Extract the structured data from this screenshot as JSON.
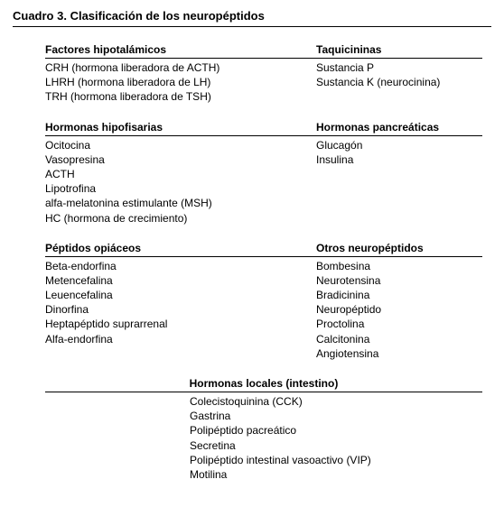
{
  "title": "Cuadro 3. Clasificación de los neuropéptidos",
  "sections": [
    {
      "left": {
        "header": "Factores hipotalámicos",
        "items": [
          "CRH (hormona liberadora de ACTH)",
          "LHRH (hormona liberadora de LH)",
          "TRH (hormona liberadora de TSH)"
        ]
      },
      "right": {
        "header": "Taquicininas",
        "items": [
          "Sustancia P",
          "Sustancia K (neurocinina)"
        ]
      }
    },
    {
      "left": {
        "header": "Hormonas hipofisarias",
        "items": [
          "Ocitocina",
          "Vasopresina",
          "ACTH",
          "Lipotrofina",
          "alfa-melatonina estimulante (MSH)",
          "HC (hormona de crecimiento)"
        ]
      },
      "right": {
        "header": "Hormonas pancreáticas",
        "items": [
          "Glucagón",
          "Insulina"
        ]
      }
    },
    {
      "left": {
        "header": "Péptidos opiáceos",
        "items": [
          "Beta-endorfina",
          "Metencefalina",
          "Leuencefalina",
          "Dinorfina",
          "Heptapéptido suprarrenal",
          "Alfa-endorfina"
        ]
      },
      "right": {
        "header": "Otros neuropéptidos",
        "items": [
          "Bombesina",
          "Neurotensina",
          "Bradicinina",
          "Neuropéptido",
          "Proctolina",
          "Calcitonina",
          "Angiotensina"
        ]
      }
    }
  ],
  "bottom": {
    "header": "Hormonas locales (intestino)",
    "items": [
      "Colecistoquinina (CCK)",
      "Gastrina",
      "Polipéptido pacreático",
      "Secretina",
      "Polipéptido intestinal vasoactivo (VIP)",
      "Motilina"
    ]
  }
}
